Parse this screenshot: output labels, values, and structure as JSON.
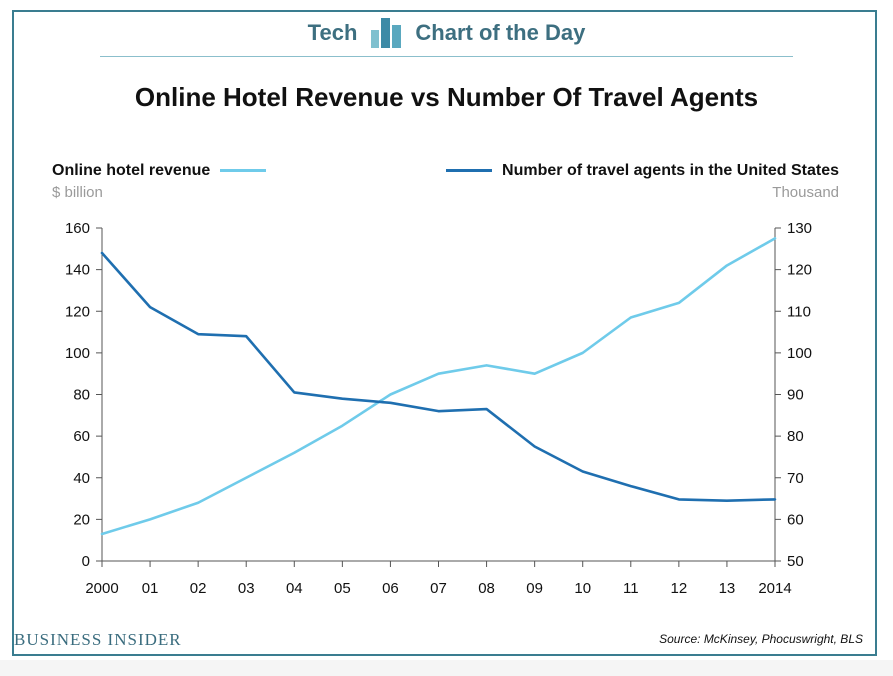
{
  "header": {
    "brand_left": "Tech",
    "brand_right": "Chart of the Day",
    "title": "Online Hotel Revenue vs Number Of Travel Agents"
  },
  "legend": {
    "left_label": "Online hotel revenue",
    "left_unit": "$ billion",
    "right_label": "Number of travel agents in the United States",
    "right_unit": "Thousand"
  },
  "footer": {
    "brand": "BUSINESS INSIDER",
    "source": "Source: McKinsey, Phocuswright, BLS"
  },
  "colors": {
    "revenue": "#6fcbea",
    "agents": "#1f6fb0",
    "axis": "#555555",
    "brand": "#3d6f80"
  },
  "chart_data": {
    "type": "line",
    "title": "Online Hotel Revenue vs Number Of Travel Agents",
    "x": [
      "2000",
      "01",
      "02",
      "03",
      "04",
      "05",
      "06",
      "07",
      "08",
      "09",
      "10",
      "11",
      "12",
      "13",
      "2014"
    ],
    "series": [
      {
        "name": "Online hotel revenue",
        "axis": "left",
        "unit": "$ billion",
        "values": [
          13,
          20,
          28,
          40,
          52,
          65,
          80,
          90,
          94,
          90,
          100,
          117,
          124,
          142,
          155
        ]
      },
      {
        "name": "Number of travel agents in the United States",
        "axis": "right",
        "unit": "Thousand",
        "values": [
          124,
          111,
          104.5,
          104,
          90.5,
          89,
          88,
          86,
          86.5,
          77.5,
          71.5,
          68,
          64.8,
          64.5,
          64.8
        ]
      }
    ],
    "y_left": {
      "min": 0,
      "max": 160,
      "ticks": [
        0,
        20,
        40,
        60,
        80,
        100,
        120,
        140,
        160
      ]
    },
    "y_right": {
      "min": 50,
      "max": 130,
      "ticks": [
        50,
        60,
        70,
        80,
        90,
        100,
        110,
        120,
        130
      ]
    },
    "grid": false,
    "legend_position": "top"
  }
}
